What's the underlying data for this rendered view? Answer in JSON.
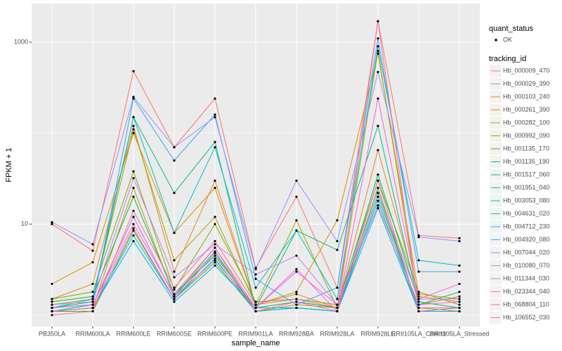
{
  "chart_data": {
    "type": "line",
    "x_label": "sample_name",
    "y_label": "FPKM + 1",
    "log_y": true,
    "grid": true,
    "categories": [
      "PB350LA",
      "RRIM600LA",
      "RRIM600LE",
      "RRIM600SE",
      "RRIM600PE",
      "RRIM901LA",
      "RRIM928BA",
      "RRIM928LA",
      "RRIM928LE",
      "RRII105LA_Control",
      "RRII105LA_Stressed"
    ],
    "ylim": [
      0.75,
      2660
    ],
    "yticks": [
      10,
      1000
    ],
    "yminor": [
      1,
      100
    ],
    "point_legend_title": "quant_status",
    "point_legend_label": "OK",
    "point_color": "#000000",
    "legend_title": "tracking_id",
    "series": [
      {
        "name": "Hb_000009_470",
        "color": "#F8766D",
        "values": [
          10,
          5.1,
          480,
          70,
          240,
          3.3,
          20,
          2,
          1700,
          7.5,
          7.0
        ]
      },
      {
        "name": "Hb_000029_390",
        "color": "#EA8331",
        "values": [
          1.5,
          2.2,
          120,
          3.0,
          30,
          1.3,
          1.7,
          1.2,
          65,
          1.6,
          1.4
        ]
      },
      {
        "name": "Hb_000103_240",
        "color": "#D89000",
        "values": [
          2.2,
          3.8,
          100,
          8,
          25,
          1.3,
          1.8,
          11,
          750,
          1.7,
          1.5
        ]
      },
      {
        "name": "Hb_000261_390",
        "color": "#C09B00",
        "values": [
          1.1,
          1.2,
          25,
          1.6,
          5.5,
          1.1,
          1.3,
          1.2,
          22,
          1.2,
          1.1
        ]
      },
      {
        "name": "Hb_000282_100",
        "color": "#A3A500",
        "values": [
          1.3,
          1.5,
          110,
          4.0,
          12,
          1.3,
          11,
          1.2,
          800,
          1.3,
          1.6
        ]
      },
      {
        "name": "Hb_000992_090",
        "color": "#7CAE00",
        "values": [
          1.5,
          1.8,
          38,
          1.9,
          10,
          1.4,
          1.5,
          1.3,
          30,
          1.8,
          1.3
        ]
      },
      {
        "name": "Hb_001135_170",
        "color": "#39B600",
        "values": [
          1.1,
          1.1,
          8.5,
          1.5,
          3.8,
          1.1,
          1.2,
          1.1,
          25,
          1.1,
          1.1
        ]
      },
      {
        "name": "Hb_001135_190",
        "color": "#00BB4E",
        "values": [
          1.4,
          1.6,
          20,
          1.7,
          4.5,
          1.2,
          1.4,
          1.2,
          35,
          1.4,
          1.2
        ]
      },
      {
        "name": "Hb_001517_060",
        "color": "#00BF7D",
        "values": [
          1.2,
          1.4,
          150,
          22,
          80,
          1.2,
          8.5,
          5.2,
          120,
          1.3,
          1.8
        ]
      },
      {
        "name": "Hb_001951_040",
        "color": "#00C1A3",
        "values": [
          1.1,
          1.3,
          12,
          1.6,
          5.0,
          1.1,
          1.2,
          1.1,
          18,
          1.1,
          1.2
        ]
      },
      {
        "name": "Hb_003053_080",
        "color": "#00BFC4",
        "values": [
          1.2,
          1.5,
          150,
          8,
          70,
          2.0,
          8.5,
          1.5,
          900,
          4.0,
          3.5
        ]
      },
      {
        "name": "Hb_004631_020",
        "color": "#00BAE0",
        "values": [
          1.1,
          1.2,
          7.5,
          1.5,
          4.2,
          1.1,
          1.2,
          1.1,
          20,
          1.2,
          1.2
        ]
      },
      {
        "name": "Hb_004712_230",
        "color": "#00B0F6",
        "values": [
          1.1,
          1.2,
          6.5,
          1.4,
          3.5,
          1.2,
          1.2,
          1.1,
          15,
          1.1,
          1.1
        ]
      },
      {
        "name": "Hb_004920_080",
        "color": "#35A2FF",
        "values": [
          1.2,
          1.3,
          240,
          50,
          160,
          2.5,
          1.3,
          2.0,
          1100,
          3.0,
          3.0
        ]
      },
      {
        "name": "Hb_007044_020",
        "color": "#9590FF",
        "values": [
          10.5,
          6.0,
          250,
          70,
          150,
          3.2,
          30,
          6.5,
          470,
          7.2,
          6.5
        ]
      },
      {
        "name": "Hb_010080_070",
        "color": "#C77CFF",
        "values": [
          1.3,
          1.4,
          32,
          2.6,
          6.0,
          2.8,
          4.5,
          1.3,
          22,
          1.5,
          1.5
        ]
      },
      {
        "name": "Hb_011344_030",
        "color": "#E76BF3",
        "values": [
          1.2,
          1.3,
          12,
          1.6,
          4.0,
          1.2,
          3.0,
          1.3,
          16,
          1.3,
          1.4
        ]
      },
      {
        "name": "Hb_023344_040",
        "color": "#FA62DB",
        "values": [
          1.2,
          1.3,
          10,
          1.7,
          5.5,
          1.2,
          3.2,
          1.1,
          240,
          1.5,
          2.2
        ]
      },
      {
        "name": "Hb_068804_110",
        "color": "#FF62BC",
        "values": [
          1.1,
          1.2,
          9.0,
          1.5,
          4.8,
          1.1,
          1.4,
          1.1,
          30,
          1.1,
          1.2
        ]
      },
      {
        "name": "Hb_106552_030",
        "color": "#FF6C91",
        "values": [
          1.0,
          1.1,
          14,
          2.0,
          6.5,
          1.3,
          1.5,
          1.2,
          1700,
          1.2,
          1.2
        ]
      }
    ]
  }
}
